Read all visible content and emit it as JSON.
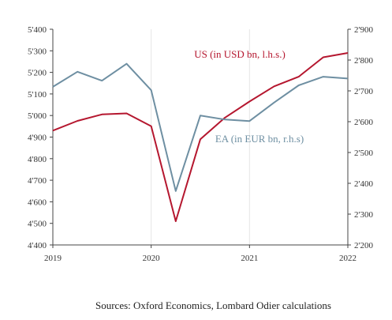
{
  "chart_data": {
    "type": "line",
    "x": [
      "2019Q1",
      "2019Q2",
      "2019Q3",
      "2019Q4",
      "2020Q1",
      "2020Q2",
      "2020Q3",
      "2020Q4",
      "2021Q1",
      "2021Q2",
      "2021Q3",
      "2021Q4",
      "2022Q1"
    ],
    "x_tick_labels": [
      "2019",
      "2020",
      "2021",
      "2022"
    ],
    "y_left_ticks": [
      "4'400",
      "4'500",
      "4'600",
      "4'700",
      "4'800",
      "4'900",
      "5'000",
      "5'100",
      "5'200",
      "5'300",
      "5'400"
    ],
    "y_right_ticks": [
      "2'200",
      "2'300",
      "2'400",
      "2'500",
      "2'600",
      "2'700",
      "2'800",
      "2'900"
    ],
    "ylim_left": [
      4400,
      5400
    ],
    "ylim_right": [
      2200,
      2900
    ],
    "grid": "vertical",
    "series": [
      {
        "name": "US (in USD bn, l.h.s.)",
        "axis": "left",
        "color": "#b5172f",
        "values": [
          4930,
          4975,
          5005,
          5010,
          4950,
          4510,
          4890,
          4990,
          5065,
          5135,
          5180,
          5270,
          5290
        ]
      },
      {
        "name": "EA (in EUR bn, r.h.s)",
        "axis": "right",
        "color": "#6e8fa2",
        "values": [
          2713,
          2762,
          2733,
          2788,
          2702,
          2375,
          2620,
          2607,
          2602,
          2662,
          2718,
          2746,
          2740
        ]
      }
    ]
  },
  "source": "Sources: Oxford Economics, Lombard Odier calculations"
}
